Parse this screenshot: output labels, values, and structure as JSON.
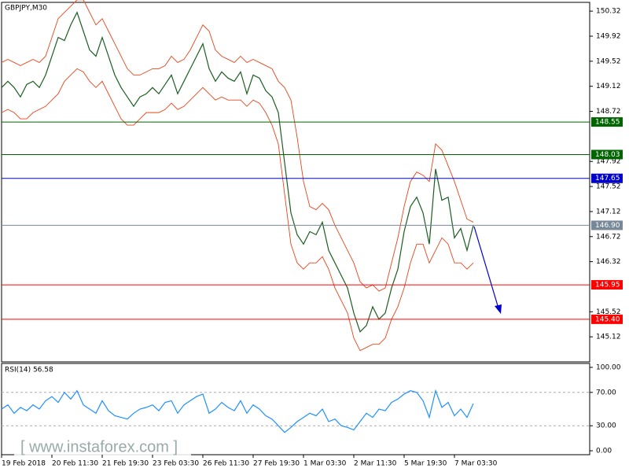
{
  "watermark": "[ www.instaforex.com ]",
  "chart_data": [
    {
      "type": "line",
      "title": "GBPJPY,M30",
      "categories": [
        "19 Feb 2018",
        null,
        null,
        null,
        null,
        null,
        null,
        null,
        "20 Feb 11:30",
        null,
        null,
        null,
        null,
        null,
        null,
        null,
        "21 Feb 19:30",
        null,
        null,
        null,
        null,
        null,
        null,
        null,
        "23 Feb 03:30",
        null,
        null,
        null,
        null,
        null,
        null,
        null,
        "26 Feb 11:30",
        null,
        null,
        null,
        null,
        null,
        null,
        null,
        "27 Feb 19:30",
        null,
        null,
        null,
        null,
        null,
        null,
        null,
        "1 Mar 03:30",
        null,
        null,
        null,
        null,
        null,
        null,
        null,
        "2 Mar 11:30",
        null,
        null,
        null,
        null,
        null,
        null,
        null,
        "5 Mar 19:30",
        null,
        null,
        null,
        null,
        null,
        null,
        null,
        "7 Mar 03:30",
        null,
        null,
        null
      ],
      "series": [
        {
          "color": "#1b5e20",
          "values": [
            149.1,
            149.2,
            149.1,
            148.95,
            149.15,
            149.2,
            149.1,
            149.3,
            149.6,
            149.9,
            149.85,
            150.1,
            150.3,
            150.0,
            149.7,
            149.6,
            149.9,
            149.6,
            149.3,
            149.1,
            148.95,
            148.8,
            148.95,
            149.0,
            149.1,
            149.0,
            149.15,
            149.3,
            149.0,
            149.2,
            149.4,
            149.6,
            149.8,
            149.4,
            149.2,
            149.35,
            149.25,
            149.2,
            149.35,
            149.0,
            149.3,
            149.25,
            149.05,
            148.95,
            148.7,
            147.9,
            147.1,
            146.75,
            146.6,
            146.8,
            146.75,
            146.95,
            146.5,
            146.3,
            146.1,
            145.9,
            145.5,
            145.2,
            145.3,
            145.6,
            145.4,
            145.5,
            145.9,
            146.2,
            146.8,
            147.2,
            147.35,
            147.1,
            146.6,
            147.8,
            147.3,
            147.35,
            146.7,
            146.85,
            146.5,
            146.9
          ]
        },
        {
          "color": "#e8431a",
          "values": [
            149.5,
            149.55,
            149.5,
            149.45,
            149.5,
            149.55,
            149.5,
            149.6,
            149.9,
            150.2,
            150.3,
            150.4,
            150.5,
            150.5,
            150.3,
            150.1,
            150.2,
            150.0,
            149.8,
            149.6,
            149.4,
            149.3,
            149.3,
            149.35,
            149.4,
            149.4,
            149.45,
            149.6,
            149.5,
            149.55,
            149.7,
            149.9,
            150.1,
            150.0,
            149.7,
            149.6,
            149.55,
            149.5,
            149.6,
            149.5,
            149.55,
            149.5,
            149.45,
            149.4,
            149.2,
            149.1,
            148.9,
            148.3,
            147.6,
            147.2,
            147.15,
            147.25,
            147.15,
            146.9,
            146.7,
            146.5,
            146.3,
            146.0,
            145.9,
            145.95,
            145.85,
            145.9,
            146.3,
            146.7,
            147.2,
            147.6,
            147.75,
            147.7,
            147.6,
            148.2,
            148.1,
            147.85,
            147.6,
            147.3,
            147.0,
            146.95
          ]
        },
        {
          "color": "#e8431a",
          "values": [
            148.7,
            148.75,
            148.7,
            148.6,
            148.6,
            148.7,
            148.75,
            148.8,
            148.9,
            149.0,
            149.2,
            149.3,
            149.4,
            149.35,
            149.2,
            149.1,
            149.2,
            149.0,
            148.8,
            148.6,
            148.5,
            148.5,
            148.6,
            148.7,
            148.7,
            148.7,
            148.75,
            148.85,
            148.75,
            148.8,
            148.9,
            149.0,
            149.1,
            149.0,
            148.9,
            148.95,
            148.9,
            148.9,
            148.9,
            148.8,
            148.9,
            148.85,
            148.7,
            148.5,
            148.2,
            147.4,
            146.6,
            146.3,
            146.2,
            146.3,
            146.3,
            146.4,
            146.2,
            145.9,
            145.7,
            145.5,
            145.1,
            144.9,
            144.95,
            145.0,
            145.0,
            145.1,
            145.4,
            145.6,
            145.9,
            146.3,
            146.6,
            146.6,
            146.3,
            146.5,
            146.7,
            146.6,
            146.3,
            146.3,
            146.2,
            146.3
          ]
        }
      ],
      "ylim": [
        144.72,
        150.46
      ],
      "yticks": [
        150.32,
        149.92,
        149.52,
        149.12,
        148.72,
        147.92,
        147.52,
        147.12,
        146.72,
        146.32,
        145.52,
        145.12
      ],
      "levels": [
        148.55,
        148.03,
        147.65,
        {
          "value": 146.9,
          "label": "146.90"
        },
        145.95,
        {
          "value": 145.4,
          "label": "145.40"
        }
      ],
      "level_colors": [
        "#006400",
        "#006400",
        "#0000cd",
        "#778899",
        "#ff0000",
        "#ff0000"
      ]
    },
    {
      "type": "line",
      "title": "RSI(14) 56.58",
      "series": [
        {
          "color": "#1e90ff",
          "values": [
            50,
            55,
            45,
            52,
            48,
            55,
            50,
            60,
            65,
            58,
            70,
            62,
            72,
            55,
            50,
            45,
            60,
            48,
            42,
            40,
            38,
            45,
            50,
            52,
            55,
            48,
            58,
            60,
            45,
            55,
            60,
            65,
            68,
            45,
            50,
            58,
            52,
            48,
            60,
            45,
            55,
            50,
            42,
            38,
            30,
            22,
            28,
            35,
            40,
            45,
            42,
            50,
            35,
            38,
            30,
            28,
            25,
            35,
            45,
            40,
            50,
            48,
            58,
            62,
            68,
            72,
            70,
            60,
            40,
            72,
            52,
            58,
            42,
            50,
            40,
            56.58
          ]
        }
      ],
      "ylim": [
        -4.7,
        104.7
      ],
      "yticks": [
        {
          "value": 100,
          "label": "100.00"
        },
        {
          "value": 70,
          "label": "70.00"
        },
        {
          "value": 30,
          "label": "30.00"
        },
        {
          "value": 0,
          "label": "0.00"
        }
      ],
      "reference_lines": [
        70,
        30
      ]
    }
  ]
}
